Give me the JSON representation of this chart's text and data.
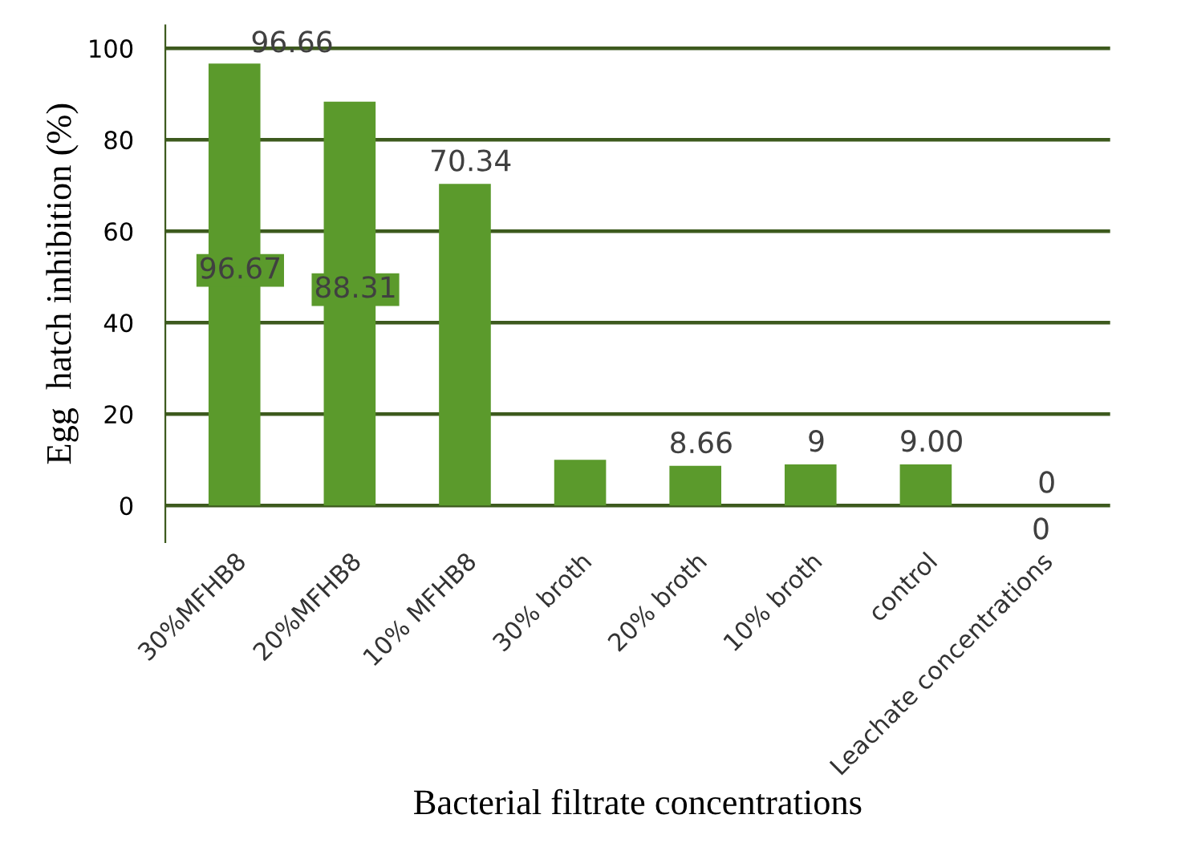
{
  "chart_data": {
    "type": "bar",
    "xlabel": "Bacterial filtrate concentrations",
    "ylabel": "Egg  hatch inhibition (%)",
    "categories": [
      "30%MFHB8",
      "20%MFHB8",
      "10% MFHB8",
      "30% broth",
      "20% broth",
      "10% broth",
      "control",
      "Leachate concentrations"
    ],
    "values": [
      96.67,
      88.31,
      70.34,
      10,
      8.66,
      9,
      9.0,
      0
    ],
    "value_labels": [
      "96.67",
      "88.31",
      "70.34",
      null,
      "8.66",
      "9",
      "9.00",
      "0"
    ],
    "color": "#5b9a2c",
    "ylim": [
      -8,
      105
    ],
    "yticks": [
      0,
      20,
      40,
      60,
      80,
      100
    ],
    "grid": "y",
    "annotations": [
      "96.66",
      "0"
    ]
  }
}
